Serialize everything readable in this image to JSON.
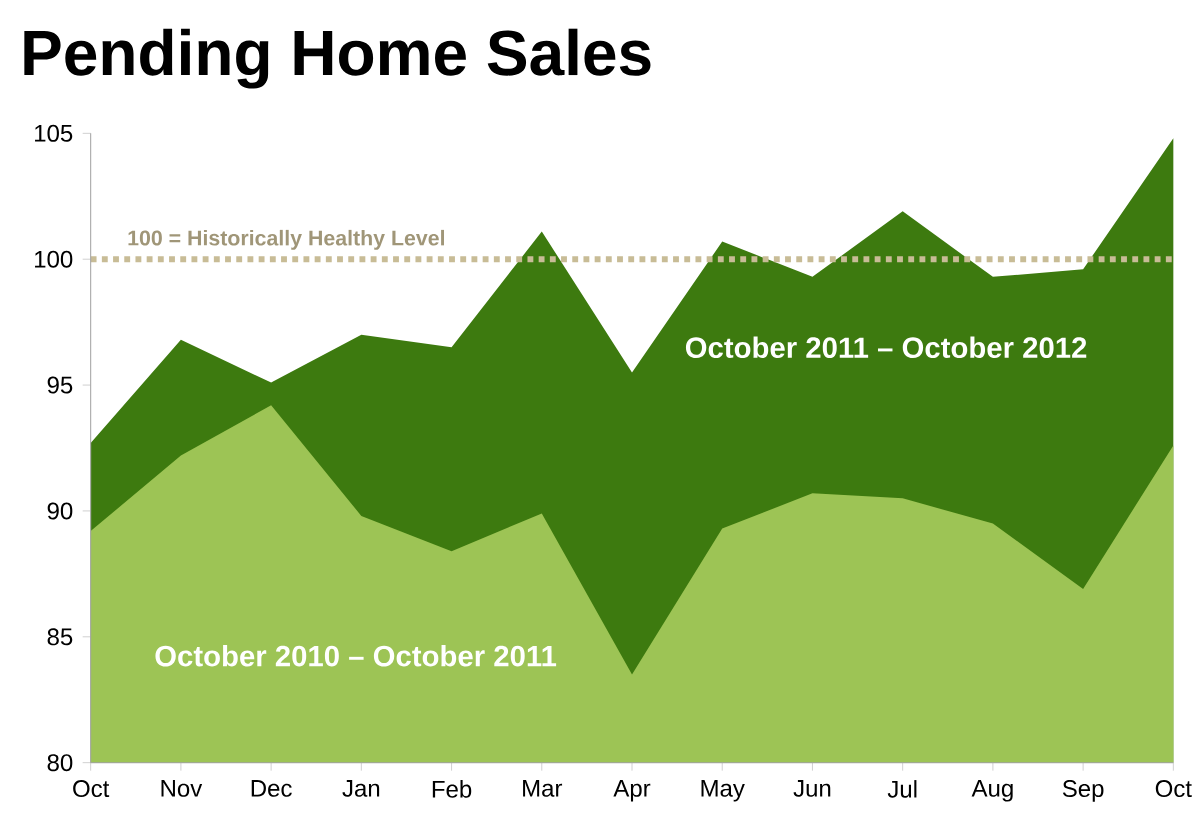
{
  "chart_data": {
    "type": "area",
    "title": "Pending Home Sales",
    "categories": [
      "Oct",
      "Nov",
      "Dec",
      "Jan",
      "Feb",
      "Mar",
      "Apr",
      "May",
      "Jun",
      "Jul",
      "Aug",
      "Sep",
      "Oct"
    ],
    "series": [
      {
        "name": "October 2011 – October 2012",
        "color": "#3d7a0f",
        "values": [
          92.7,
          96.8,
          95.1,
          97.0,
          96.5,
          101.1,
          95.5,
          100.7,
          99.3,
          101.9,
          99.3,
          99.6,
          104.8
        ]
      },
      {
        "name": "October 2010 – October 2011",
        "color": "#9dc455",
        "values": [
          89.2,
          92.2,
          94.2,
          89.8,
          88.4,
          89.9,
          83.5,
          89.3,
          90.7,
          90.5,
          89.5,
          86.9,
          92.6
        ]
      }
    ],
    "ylim": [
      80,
      105
    ],
    "yticks": [
      80,
      85,
      90,
      95,
      100,
      105
    ],
    "ref_lines": [
      {
        "axis": "y",
        "value": 100,
        "label": "100 = Historically Healthy Level",
        "color": "#c8bc96",
        "line_style": "dotted"
      }
    ]
  }
}
